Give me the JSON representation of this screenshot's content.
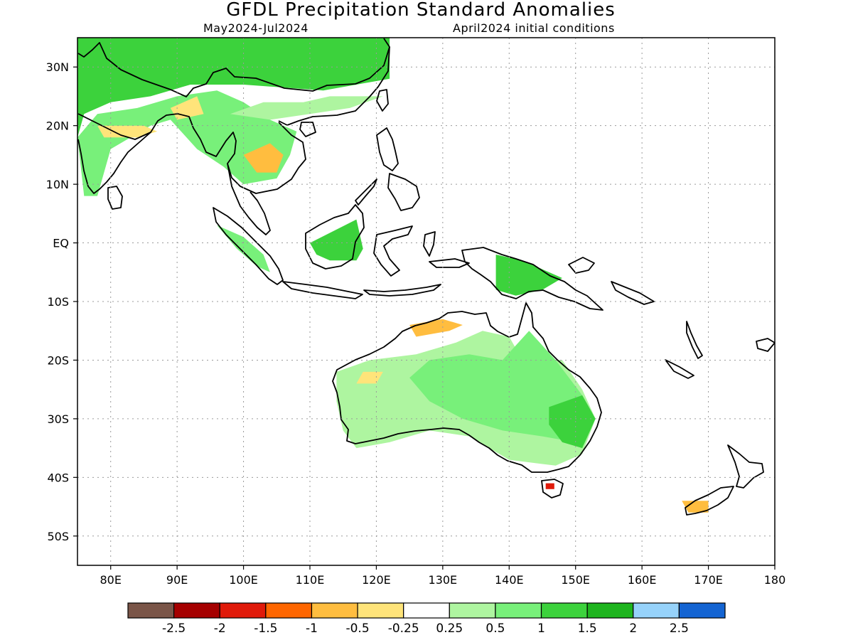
{
  "title": "GFDL Precipitation Standard Anomalies",
  "subtitle_left": "May2024-Jul2024",
  "subtitle_right": "April2024 initial conditions",
  "map": {
    "lon_range": [
      75,
      180
    ],
    "lat_range": [
      -55,
      35
    ],
    "lon_ticks": [
      {
        "value": 80,
        "label": "80E"
      },
      {
        "value": 90,
        "label": "90E"
      },
      {
        "value": 100,
        "label": "100E"
      },
      {
        "value": 110,
        "label": "110E"
      },
      {
        "value": 120,
        "label": "120E"
      },
      {
        "value": 130,
        "label": "130E"
      },
      {
        "value": 140,
        "label": "140E"
      },
      {
        "value": 150,
        "label": "150E"
      },
      {
        "value": 160,
        "label": "160E"
      },
      {
        "value": 170,
        "label": "170E"
      },
      {
        "value": 180,
        "label": "180"
      }
    ],
    "lat_ticks": [
      {
        "value": 30,
        "label": "30N"
      },
      {
        "value": 20,
        "label": "20N"
      },
      {
        "value": 10,
        "label": "10N"
      },
      {
        "value": 0,
        "label": "EQ"
      },
      {
        "value": -10,
        "label": "10S"
      },
      {
        "value": -20,
        "label": "20S"
      },
      {
        "value": -30,
        "label": "30S"
      },
      {
        "value": -40,
        "label": "40S"
      },
      {
        "value": -50,
        "label": "50S"
      }
    ],
    "grid": true
  },
  "colorbar": {
    "colors": [
      "#7a5548",
      "#a50000",
      "#e01a0a",
      "#ff6600",
      "#ffbd3f",
      "#ffe47a",
      "#ffffff",
      "#aef5a0",
      "#78f07a",
      "#3cd23c",
      "#1eb41e",
      "#96d2fa",
      "#1464d2"
    ],
    "labels": [
      "-2.5",
      "-2",
      "-1.5",
      "-1",
      "-0.5",
      "-0.25",
      "0.25",
      "0.5",
      "1",
      "1.5",
      "2",
      "2.5"
    ]
  },
  "anomaly_regions": [
    {
      "category": "1.5",
      "color": "#3cd23c",
      "points": [
        [
          75,
          35
        ],
        [
          122,
          35
        ],
        [
          122,
          28
        ],
        [
          112,
          26
        ],
        [
          100,
          27
        ],
        [
          92,
          27
        ],
        [
          86,
          25
        ],
        [
          80,
          24
        ],
        [
          76,
          22
        ],
        [
          75,
          18
        ]
      ]
    },
    {
      "category": "1",
      "color": "#78f07a",
      "points": [
        [
          75,
          18
        ],
        [
          78,
          22
        ],
        [
          84,
          23
        ],
        [
          90,
          25
        ],
        [
          96,
          26
        ],
        [
          100,
          24
        ],
        [
          104,
          21
        ],
        [
          106,
          20
        ],
        [
          108,
          19
        ],
        [
          107,
          15
        ],
        [
          105,
          11
        ],
        [
          100,
          10
        ],
        [
          97,
          13
        ],
        [
          93,
          16
        ],
        [
          89,
          21
        ],
        [
          86,
          20
        ],
        [
          80,
          16
        ],
        [
          78,
          8
        ],
        [
          76,
          8
        ]
      ]
    },
    {
      "category": "0.5",
      "color": "#aef5a0",
      "points": [
        [
          98,
          22
        ],
        [
          103,
          24
        ],
        [
          109,
          24
        ],
        [
          113,
          25
        ],
        [
          117,
          25
        ],
        [
          121,
          25
        ],
        [
          116,
          23
        ],
        [
          110,
          22
        ],
        [
          104,
          21
        ]
      ]
    },
    {
      "category": "1.5",
      "color": "#3cd23c",
      "points": [
        [
          110,
          0
        ],
        [
          117,
          4
        ],
        [
          118,
          -1
        ],
        [
          117,
          -3
        ],
        [
          113,
          -3
        ],
        [
          111,
          -2
        ]
      ]
    },
    {
      "category": "1",
      "color": "#78f07a",
      "points": [
        [
          96,
          3
        ],
        [
          100,
          1
        ],
        [
          103,
          -2
        ],
        [
          104,
          -5
        ],
        [
          102,
          -4
        ],
        [
          99,
          -1
        ]
      ]
    },
    {
      "category": "1.5",
      "color": "#3cd23c",
      "points": [
        [
          138,
          -2
        ],
        [
          142,
          -3
        ],
        [
          146,
          -5
        ],
        [
          148,
          -6
        ],
        [
          145,
          -8
        ],
        [
          141,
          -9
        ],
        [
          138,
          -8
        ]
      ]
    },
    {
      "category": "0.5",
      "color": "#aef5a0",
      "points": [
        [
          114,
          -22
        ],
        [
          119,
          -20
        ],
        [
          126,
          -19
        ],
        [
          132,
          -17
        ],
        [
          136,
          -15
        ],
        [
          140,
          -16
        ],
        [
          142,
          -20
        ],
        [
          148,
          -20
        ],
        [
          151,
          -25
        ],
        [
          153,
          -30
        ],
        [
          151,
          -36
        ],
        [
          147,
          -38
        ],
        [
          140,
          -37
        ],
        [
          134,
          -33
        ],
        [
          128,
          -32
        ],
        [
          122,
          -34
        ],
        [
          117,
          -35
        ],
        [
          115,
          -32
        ],
        [
          114,
          -27
        ]
      ]
    },
    {
      "category": "1",
      "color": "#78f07a",
      "points": [
        [
          128,
          -20
        ],
        [
          134,
          -19
        ],
        [
          139,
          -20
        ],
        [
          143,
          -15
        ],
        [
          147,
          -20
        ],
        [
          151,
          -26
        ],
        [
          153,
          -30
        ],
        [
          150,
          -34
        ],
        [
          145,
          -33
        ],
        [
          139,
          -32
        ],
        [
          133,
          -30
        ],
        [
          128,
          -27
        ],
        [
          125,
          -23
        ]
      ]
    },
    {
      "category": "1.5",
      "color": "#3cd23c",
      "points": [
        [
          146,
          -28
        ],
        [
          151,
          -26
        ],
        [
          153,
          -30
        ],
        [
          151,
          -35
        ],
        [
          148,
          -34
        ],
        [
          146,
          -31
        ]
      ]
    },
    {
      "category": "-0.5",
      "color": "#ffbd3f",
      "points": [
        [
          125,
          -14
        ],
        [
          130,
          -13
        ],
        [
          133,
          -14
        ],
        [
          131,
          -15
        ],
        [
          126,
          -16
        ]
      ]
    },
    {
      "category": "-0.25",
      "color": "#ffe47a",
      "points": [
        [
          118,
          -22
        ],
        [
          121,
          -22
        ],
        [
          120,
          -24
        ],
        [
          117,
          -24
        ]
      ]
    },
    {
      "category": "-0.5",
      "color": "#ffbd3f",
      "points": [
        [
          100,
          15
        ],
        [
          104,
          17
        ],
        [
          106,
          15
        ],
        [
          105,
          12
        ],
        [
          102,
          12
        ]
      ]
    },
    {
      "category": "-0.25",
      "color": "#ffe47a",
      "points": [
        [
          89,
          23
        ],
        [
          93,
          25
        ],
        [
          94,
          22
        ],
        [
          90,
          21
        ]
      ]
    },
    {
      "category": "-0.25",
      "color": "#ffe47a",
      "points": [
        [
          78,
          20
        ],
        [
          85,
          20
        ],
        [
          87,
          19
        ],
        [
          84,
          18
        ],
        [
          79,
          18
        ]
      ]
    },
    {
      "category": "-0.5",
      "color": "#ffbd3f",
      "points": [
        [
          166,
          -44
        ],
        [
          170,
          -44
        ],
        [
          170,
          -46
        ],
        [
          167,
          -46
        ]
      ]
    },
    {
      "category": "-1.5",
      "color": "#e01a0a",
      "points": [
        [
          145.5,
          -41
        ],
        [
          146.8,
          -41
        ],
        [
          146.8,
          -42
        ],
        [
          145.5,
          -42
        ]
      ]
    }
  ]
}
